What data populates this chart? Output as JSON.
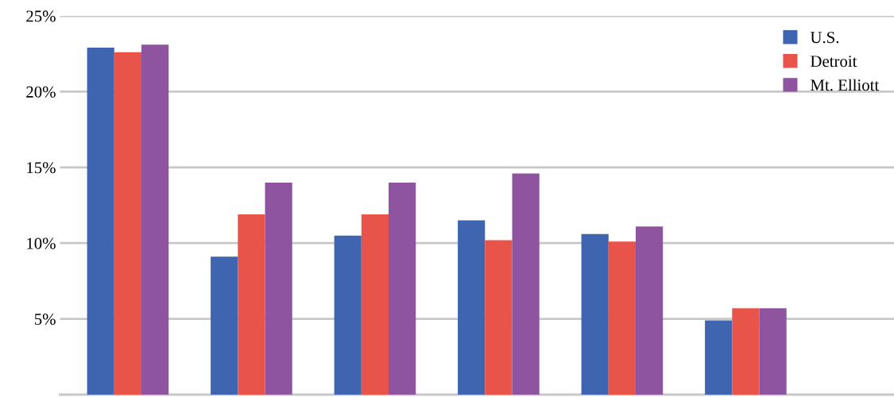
{
  "chart_data": {
    "type": "bar",
    "categories": [
      null,
      null,
      null,
      null,
      null,
      null
    ],
    "series": [
      {
        "name": "U.S.",
        "color": "#3f65b0",
        "values": [
          22.9,
          9.1,
          10.5,
          11.5,
          10.6,
          4.9
        ]
      },
      {
        "name": "Detroit",
        "color": "#e8534a",
        "values": [
          22.6,
          11.9,
          11.9,
          10.2,
          10.1,
          5.7
        ]
      },
      {
        "name": "Mt. Elliott",
        "color": "#8e54a0",
        "values": [
          23.1,
          14.0,
          14.0,
          14.6,
          11.1,
          5.7
        ]
      }
    ],
    "ylim": [
      0,
      25
    ],
    "yticks": [
      {
        "value": 5,
        "label": "5%"
      },
      {
        "value": 10,
        "label": "10%"
      },
      {
        "value": 15,
        "label": "15%"
      },
      {
        "value": 20,
        "label": "20%"
      },
      {
        "value": 25,
        "label": "25%"
      }
    ],
    "grid": "y",
    "legend": "top right"
  }
}
